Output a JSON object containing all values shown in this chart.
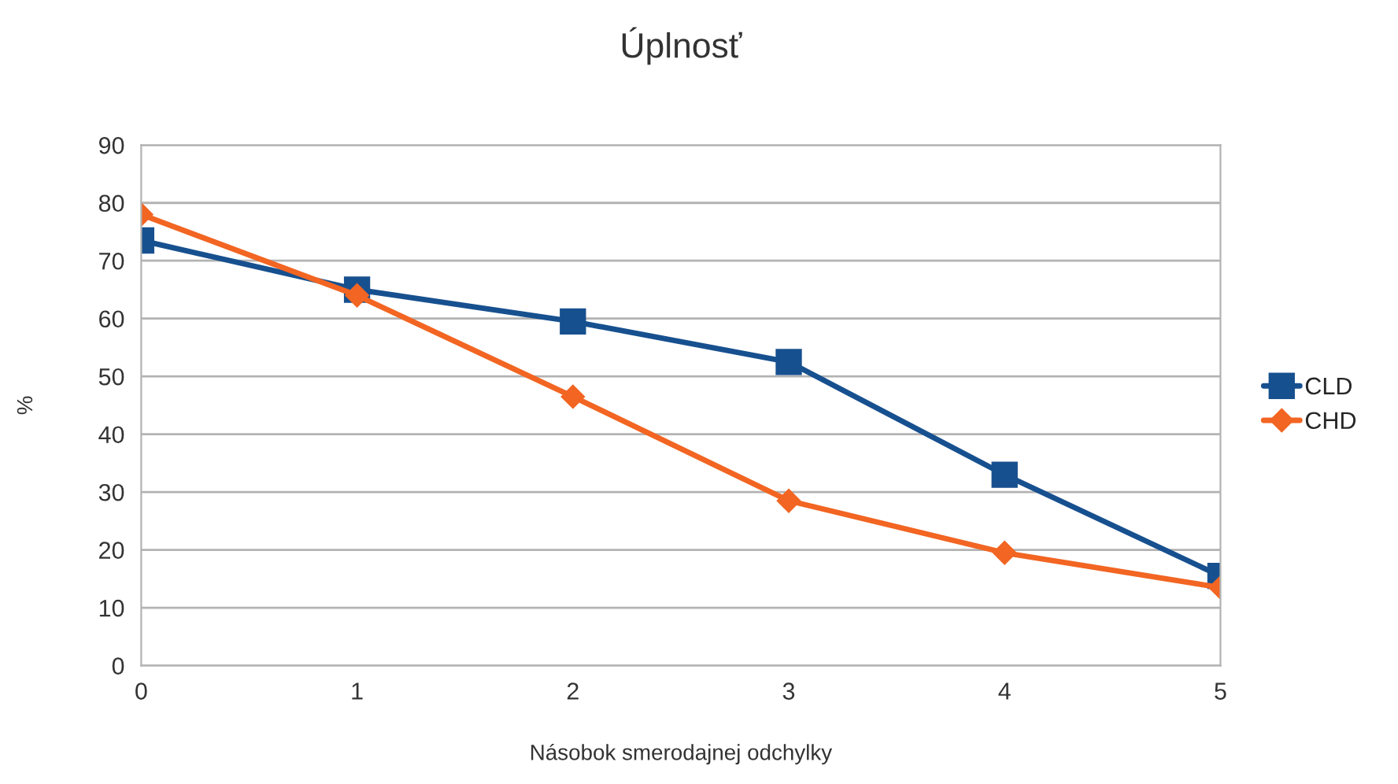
{
  "chart_data": {
    "type": "line",
    "title": "Úplnosť",
    "xlabel": "Násobok smerodajnej odchylky",
    "ylabel": "%",
    "x": [
      0,
      1,
      2,
      3,
      4,
      5
    ],
    "series": [
      {
        "name": "CLD",
        "color": "#17508f",
        "marker": "square",
        "values": [
          73.5,
          65,
          59.5,
          52.5,
          33,
          15.5
        ]
      },
      {
        "name": "CHD",
        "color": "#f26522",
        "marker": "diamond",
        "values": [
          78,
          64,
          46.5,
          28.5,
          19.5,
          13.5
        ]
      }
    ],
    "xlim": [
      0,
      5
    ],
    "xticks": [
      0,
      1,
      2,
      3,
      4,
      5
    ],
    "ylim": [
      0,
      90
    ],
    "yticks": [
      0,
      10,
      20,
      30,
      40,
      50,
      60,
      70,
      80,
      90
    ],
    "grid": "y",
    "legend": "right"
  }
}
